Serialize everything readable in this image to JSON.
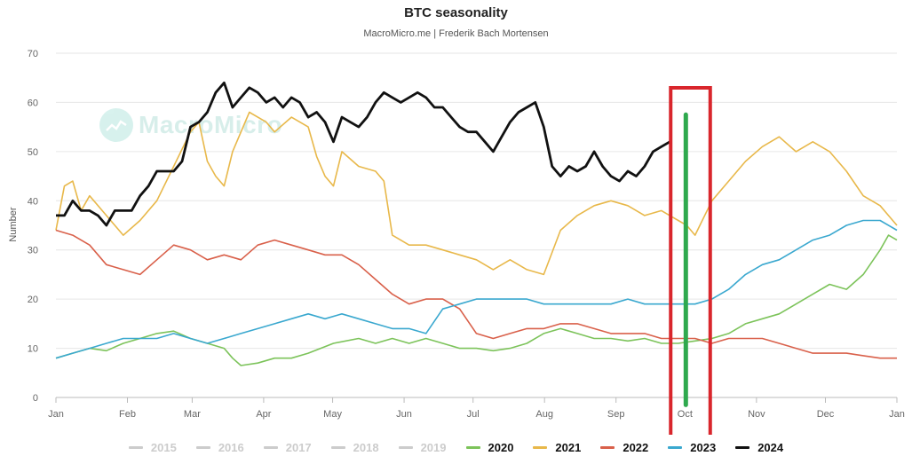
{
  "title": "BTC seasonality",
  "subtitle": "MacroMicro.me | Frederik Bach Mortensen",
  "watermark": "MacroMicro",
  "chart_data": {
    "type": "line",
    "ylabel": "Number",
    "xlabel": "",
    "ylim": [
      0,
      70
    ],
    "yticks": [
      0,
      10,
      20,
      30,
      40,
      50,
      60,
      70
    ],
    "xlim": [
      0,
      1
    ],
    "xticks": [
      {
        "label": "Jan",
        "x": 0.0
      },
      {
        "label": "Feb",
        "x": 0.085
      },
      {
        "label": "Mar",
        "x": 0.162
      },
      {
        "label": "Apr",
        "x": 0.247
      },
      {
        "label": "May",
        "x": 0.329
      },
      {
        "label": "Jun",
        "x": 0.414
      },
      {
        "label": "Jul",
        "x": 0.496
      },
      {
        "label": "Aug",
        "x": 0.581
      },
      {
        "label": "Sep",
        "x": 0.666
      },
      {
        "label": "Oct",
        "x": 0.748
      },
      {
        "label": "Nov",
        "x": 0.833
      },
      {
        "label": "Dec",
        "x": 0.915
      },
      {
        "label": "Jan",
        "x": 1.0
      }
    ],
    "legend_position": "bottom-center",
    "grid": true,
    "series": [
      {
        "name": "2015",
        "color": "#cccccc",
        "visible": false,
        "x": [],
        "y": []
      },
      {
        "name": "2016",
        "color": "#cccccc",
        "visible": false,
        "x": [],
        "y": []
      },
      {
        "name": "2017",
        "color": "#cccccc",
        "visible": false,
        "x": [],
        "y": []
      },
      {
        "name": "2018",
        "color": "#cccccc",
        "visible": false,
        "x": [],
        "y": []
      },
      {
        "name": "2019",
        "color": "#cccccc",
        "visible": false,
        "x": [],
        "y": []
      },
      {
        "name": "2020",
        "color": "#7cc35a",
        "visible": true,
        "x": [
          0,
          0.02,
          0.04,
          0.06,
          0.08,
          0.1,
          0.12,
          0.14,
          0.16,
          0.18,
          0.2,
          0.21,
          0.22,
          0.24,
          0.26,
          0.28,
          0.3,
          0.33,
          0.36,
          0.38,
          0.4,
          0.42,
          0.44,
          0.46,
          0.48,
          0.5,
          0.52,
          0.54,
          0.56,
          0.58,
          0.6,
          0.62,
          0.64,
          0.66,
          0.68,
          0.7,
          0.72,
          0.74,
          0.76,
          0.78,
          0.8,
          0.82,
          0.84,
          0.86,
          0.88,
          0.9,
          0.92,
          0.94,
          0.96,
          0.98,
          0.99,
          1.0
        ],
        "y": [
          8,
          9,
          10,
          9.5,
          11,
          12,
          13,
          13.5,
          12,
          11,
          10,
          8,
          6.5,
          7,
          8,
          8,
          9,
          11,
          12,
          11,
          12,
          11,
          12,
          11,
          10,
          10,
          9.5,
          10,
          11,
          13,
          14,
          13,
          12,
          12,
          11.5,
          12,
          11,
          11,
          11.5,
          12,
          13,
          15,
          16,
          17,
          19,
          21,
          23,
          22,
          25,
          30,
          33,
          32
        ]
      },
      {
        "name": "2021",
        "color": "#e8b84a",
        "visible": true,
        "x": [
          0,
          0.01,
          0.02,
          0.03,
          0.04,
          0.06,
          0.08,
          0.1,
          0.12,
          0.14,
          0.16,
          0.17,
          0.18,
          0.19,
          0.2,
          0.21,
          0.23,
          0.25,
          0.26,
          0.28,
          0.3,
          0.31,
          0.32,
          0.33,
          0.34,
          0.36,
          0.38,
          0.39,
          0.4,
          0.42,
          0.44,
          0.46,
          0.48,
          0.5,
          0.52,
          0.54,
          0.56,
          0.58,
          0.6,
          0.62,
          0.64,
          0.66,
          0.68,
          0.7,
          0.72,
          0.74,
          0.75,
          0.76,
          0.78,
          0.8,
          0.82,
          0.84,
          0.86,
          0.88,
          0.9,
          0.92,
          0.94,
          0.96,
          0.98,
          0.99,
          1.0
        ],
        "y": [
          34,
          43,
          44,
          38,
          41,
          37,
          33,
          36,
          40,
          47,
          54,
          56,
          48,
          45,
          43,
          50,
          58,
          56,
          54,
          57,
          55,
          49,
          45,
          43,
          50,
          47,
          46,
          44,
          33,
          31,
          31,
          30,
          29,
          28,
          26,
          28,
          26,
          25,
          34,
          37,
          39,
          40,
          39,
          37,
          38,
          36,
          35,
          33,
          40,
          44,
          48,
          51,
          53,
          50,
          52,
          50,
          46,
          41,
          39,
          37,
          35
        ]
      },
      {
        "name": "2022",
        "color": "#d9604a",
        "visible": true,
        "x": [
          0,
          0.02,
          0.04,
          0.06,
          0.08,
          0.1,
          0.12,
          0.14,
          0.16,
          0.18,
          0.2,
          0.22,
          0.24,
          0.26,
          0.28,
          0.3,
          0.32,
          0.34,
          0.36,
          0.38,
          0.4,
          0.42,
          0.44,
          0.46,
          0.48,
          0.5,
          0.52,
          0.54,
          0.56,
          0.58,
          0.6,
          0.62,
          0.64,
          0.66,
          0.68,
          0.7,
          0.72,
          0.74,
          0.76,
          0.78,
          0.8,
          0.82,
          0.84,
          0.86,
          0.88,
          0.9,
          0.92,
          0.94,
          0.96,
          0.98,
          1.0
        ],
        "y": [
          34,
          33,
          31,
          27,
          26,
          25,
          28,
          31,
          30,
          28,
          29,
          28,
          31,
          32,
          31,
          30,
          29,
          29,
          27,
          24,
          21,
          19,
          20,
          20,
          18,
          13,
          12,
          13,
          14,
          14,
          15,
          15,
          14,
          13,
          13,
          13,
          12,
          12,
          12,
          11,
          12,
          12,
          12,
          11,
          10,
          9,
          9,
          9,
          8.5,
          8,
          8
        ]
      },
      {
        "name": "2023",
        "color": "#3aa8cf",
        "visible": true,
        "x": [
          0,
          0.02,
          0.04,
          0.06,
          0.08,
          0.1,
          0.12,
          0.14,
          0.16,
          0.18,
          0.2,
          0.22,
          0.24,
          0.26,
          0.28,
          0.3,
          0.32,
          0.34,
          0.36,
          0.38,
          0.4,
          0.42,
          0.44,
          0.46,
          0.48,
          0.5,
          0.52,
          0.54,
          0.56,
          0.58,
          0.6,
          0.62,
          0.64,
          0.66,
          0.68,
          0.7,
          0.72,
          0.74,
          0.76,
          0.78,
          0.8,
          0.82,
          0.84,
          0.86,
          0.88,
          0.9,
          0.92,
          0.94,
          0.96,
          0.98,
          1.0
        ],
        "y": [
          8,
          9,
          10,
          11,
          12,
          12,
          12,
          13,
          12,
          11,
          12,
          13,
          14,
          15,
          16,
          17,
          16,
          17,
          16,
          15,
          14,
          14,
          13,
          18,
          19,
          20,
          20,
          20,
          20,
          19,
          19,
          19,
          19,
          19,
          20,
          19,
          19,
          19,
          19,
          20,
          22,
          25,
          27,
          28,
          30,
          32,
          33,
          35,
          36,
          36,
          34
        ]
      },
      {
        "name": "2024",
        "color": "#111111",
        "visible": true,
        "x": [
          0,
          0.01,
          0.02,
          0.03,
          0.04,
          0.05,
          0.06,
          0.07,
          0.08,
          0.09,
          0.1,
          0.11,
          0.12,
          0.13,
          0.14,
          0.15,
          0.16,
          0.17,
          0.18,
          0.19,
          0.2,
          0.21,
          0.22,
          0.23,
          0.24,
          0.25,
          0.26,
          0.27,
          0.28,
          0.29,
          0.3,
          0.31,
          0.32,
          0.33,
          0.34,
          0.35,
          0.36,
          0.37,
          0.38,
          0.39,
          0.4,
          0.41,
          0.42,
          0.43,
          0.44,
          0.45,
          0.46,
          0.47,
          0.48,
          0.49,
          0.5,
          0.51,
          0.52,
          0.53,
          0.54,
          0.55,
          0.56,
          0.57,
          0.58,
          0.59,
          0.6,
          0.61,
          0.62,
          0.63,
          0.64,
          0.65,
          0.66,
          0.67,
          0.68,
          0.69,
          0.7,
          0.71,
          0.72,
          0.73
        ],
        "y": [
          37,
          37,
          40,
          38,
          38,
          37,
          35,
          38,
          38,
          38,
          41,
          43,
          46,
          46,
          46,
          48,
          55,
          56,
          58,
          62,
          64,
          59,
          61,
          63,
          62,
          60,
          61,
          59,
          61,
          60,
          57,
          58,
          56,
          52,
          57,
          56,
          55,
          57,
          60,
          62,
          61,
          60,
          61,
          62,
          61,
          59,
          59,
          57,
          55,
          54,
          54,
          52,
          50,
          53,
          56,
          58,
          59,
          60,
          55,
          47,
          45,
          47,
          46,
          47,
          50,
          47,
          45,
          44,
          46,
          45,
          47,
          50,
          51,
          52
        ]
      }
    ]
  },
  "annotation": {
    "highlight_box_color": "#d9262c",
    "marker_line_color": "#2fa94e"
  }
}
